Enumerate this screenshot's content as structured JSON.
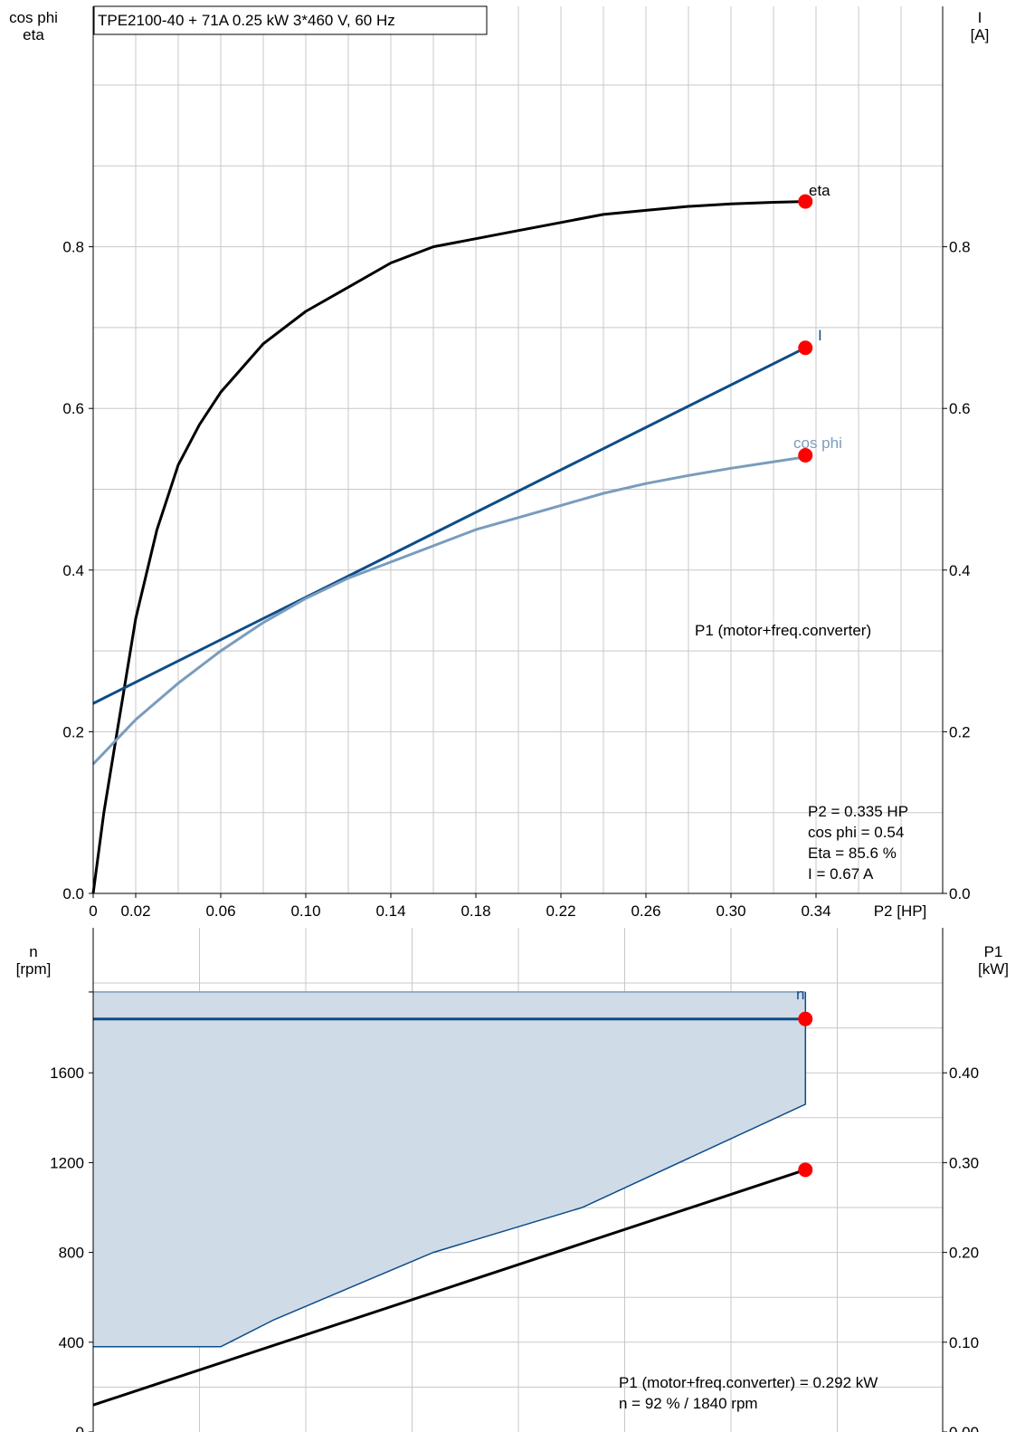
{
  "header": {
    "title": "TPE2100-40 + 71A   0.25 kW   3*460 V, 60 Hz"
  },
  "colors": {
    "eta": "#000000",
    "current": "#0d4c8a",
    "cos_phi": "#7a9cbd",
    "speed": "#0d4c8a",
    "p1": "#000000",
    "envelope_fill": "#cfdbe7",
    "envelope_stroke": "#0d4c8a",
    "marker": "#ff0000",
    "grid": "#c8c8c8"
  },
  "chart_data": [
    {
      "type": "line",
      "grid": true,
      "left_axis_label": [
        "cos phi",
        "eta"
      ],
      "right_axis_label": [
        "I",
        "[A]"
      ],
      "xlabel": "P2 [HP]",
      "xlim": [
        0,
        0.4
      ],
      "ylim": [
        0,
        1.1
      ],
      "x_ticks": [
        "0",
        "0.02",
        "0.06",
        "0.10",
        "0.14",
        "0.18",
        "0.22",
        "0.26",
        "0.30",
        "0.34"
      ],
      "x_tick_values": [
        0,
        0.02,
        0.06,
        0.1,
        0.14,
        0.18,
        0.22,
        0.26,
        0.3,
        0.34
      ],
      "y_ticks": [
        "0.0",
        "0.2",
        "0.4",
        "0.6",
        "0.8"
      ],
      "y_tick_values": [
        0,
        0.2,
        0.4,
        0.6,
        0.8
      ],
      "right_y_ticks": [
        "0.0",
        "0.2",
        "0.4",
        "0.6",
        "0.8"
      ],
      "series": [
        {
          "name": "eta",
          "x": [
            0,
            0.005,
            0.01,
            0.015,
            0.02,
            0.03,
            0.04,
            0.05,
            0.06,
            0.08,
            0.1,
            0.12,
            0.14,
            0.16,
            0.18,
            0.2,
            0.22,
            0.24,
            0.26,
            0.28,
            0.3,
            0.32,
            0.335
          ],
          "y": [
            0.0,
            0.1,
            0.18,
            0.26,
            0.34,
            0.45,
            0.53,
            0.58,
            0.62,
            0.68,
            0.72,
            0.75,
            0.78,
            0.8,
            0.81,
            0.82,
            0.83,
            0.84,
            0.845,
            0.85,
            0.853,
            0.855,
            0.856
          ]
        },
        {
          "name": "I",
          "x": [
            0,
            0.335
          ],
          "y": [
            0.235,
            0.675
          ]
        },
        {
          "name": "cos phi",
          "x": [
            0,
            0.02,
            0.04,
            0.06,
            0.08,
            0.1,
            0.12,
            0.14,
            0.16,
            0.18,
            0.2,
            0.22,
            0.24,
            0.26,
            0.28,
            0.3,
            0.335
          ],
          "y": [
            0.16,
            0.215,
            0.26,
            0.3,
            0.335,
            0.365,
            0.39,
            0.41,
            0.43,
            0.45,
            0.465,
            0.48,
            0.495,
            0.507,
            0.517,
            0.526,
            0.54
          ]
        }
      ],
      "operating_point": {
        "x": 0.335,
        "eta": 0.856,
        "I": 0.675,
        "cos_phi": 0.542
      },
      "annotations": [
        "P2 = 0.335 HP",
        "cos phi = 0.54",
        "Eta = 85.6 %",
        "I = 0.67 A"
      ]
    },
    {
      "type": "line",
      "grid": true,
      "left_axis_label": [
        "n",
        "[rpm]"
      ],
      "right_axis_label": [
        "P1",
        "[kW]"
      ],
      "xlim": [
        0,
        0.4
      ],
      "ylim_left": [
        0,
        2000
      ],
      "ylim_right": [
        0,
        0.5
      ],
      "y_ticks": [
        "0",
        "400",
        "800",
        "1200",
        "1600"
      ],
      "y_tick_values": [
        0,
        400,
        800,
        1200,
        1600
      ],
      "right_y_ticks": [
        "0.00",
        "0.10",
        "0.20",
        "0.30",
        "0.40"
      ],
      "right_y_tick_values": [
        0,
        0.1,
        0.2,
        0.3,
        0.4
      ],
      "envelope": {
        "upper_rpm": 1960,
        "lower_x": [
          0,
          0.06,
          0.085,
          0.16,
          0.23,
          0.335
        ],
        "lower_rpm": [
          380,
          380,
          500,
          800,
          1000,
          1460
        ]
      },
      "series": [
        {
          "name": "n",
          "x": [
            0,
            0.335
          ],
          "y": [
            1840,
            1840
          ],
          "axis": "left"
        },
        {
          "name": "P1 (motor+freq.converter)",
          "x": [
            0,
            0.335
          ],
          "y": [
            0.03,
            0.292
          ],
          "axis": "right"
        }
      ],
      "operating_point": {
        "x": 0.335,
        "n_rpm": 1840,
        "P1_kw": 0.292
      },
      "annotations": [
        "P1 (motor+freq.converter) = 0.292 kW",
        "n = 92 % / 1840 rpm"
      ]
    }
  ]
}
